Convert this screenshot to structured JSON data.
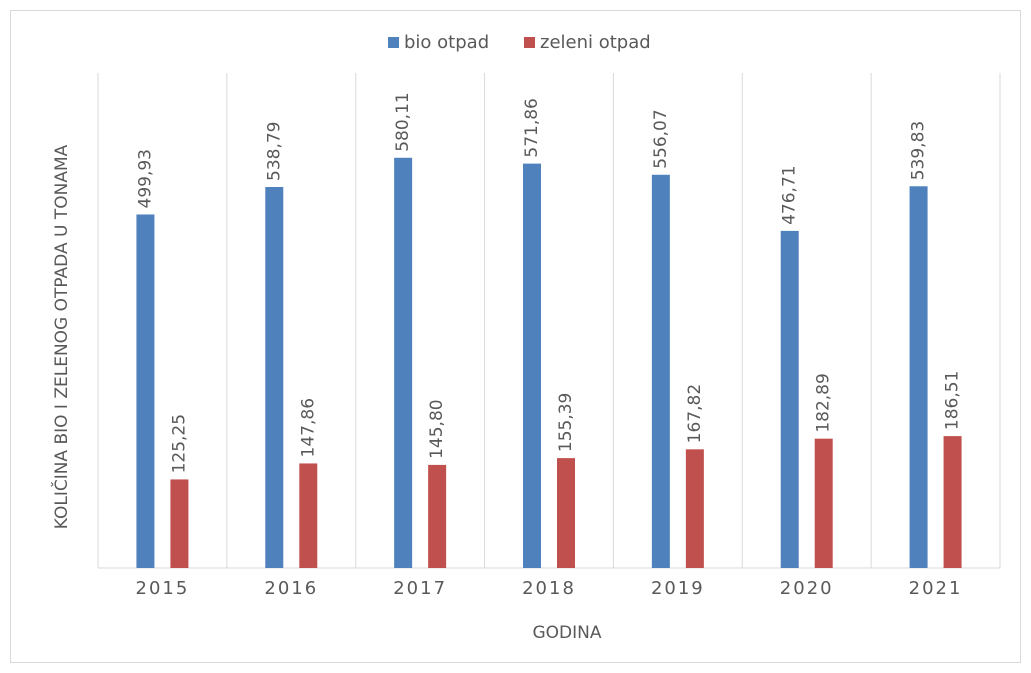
{
  "chart_data": {
    "type": "bar",
    "x_label": "GODINA",
    "y_label": "KOLIČINA BIO I ZELENOG OTPADA U TONAMA",
    "categories": [
      "2015",
      "2016",
      "2017",
      "2018",
      "2019",
      "2020",
      "2021"
    ],
    "ylim": [
      0,
      700
    ],
    "series": [
      {
        "name": "bio otpad",
        "color": "#4f81bd",
        "values": [
          499.93,
          538.79,
          580.11,
          571.86,
          556.07,
          476.71,
          539.83
        ],
        "value_labels": [
          "499,93",
          "538,79",
          "580,11",
          "571,86",
          "556,07",
          "476,71",
          "539,83"
        ]
      },
      {
        "name": "zeleni otpad",
        "color": "#c0504d",
        "values": [
          125.25,
          147.86,
          145.8,
          155.39,
          167.82,
          182.89,
          186.51
        ],
        "value_labels": [
          "125,25",
          "147,86",
          "145,80",
          "155,39",
          "167,82",
          "182,89",
          "186,51"
        ]
      }
    ],
    "legend": "top"
  }
}
